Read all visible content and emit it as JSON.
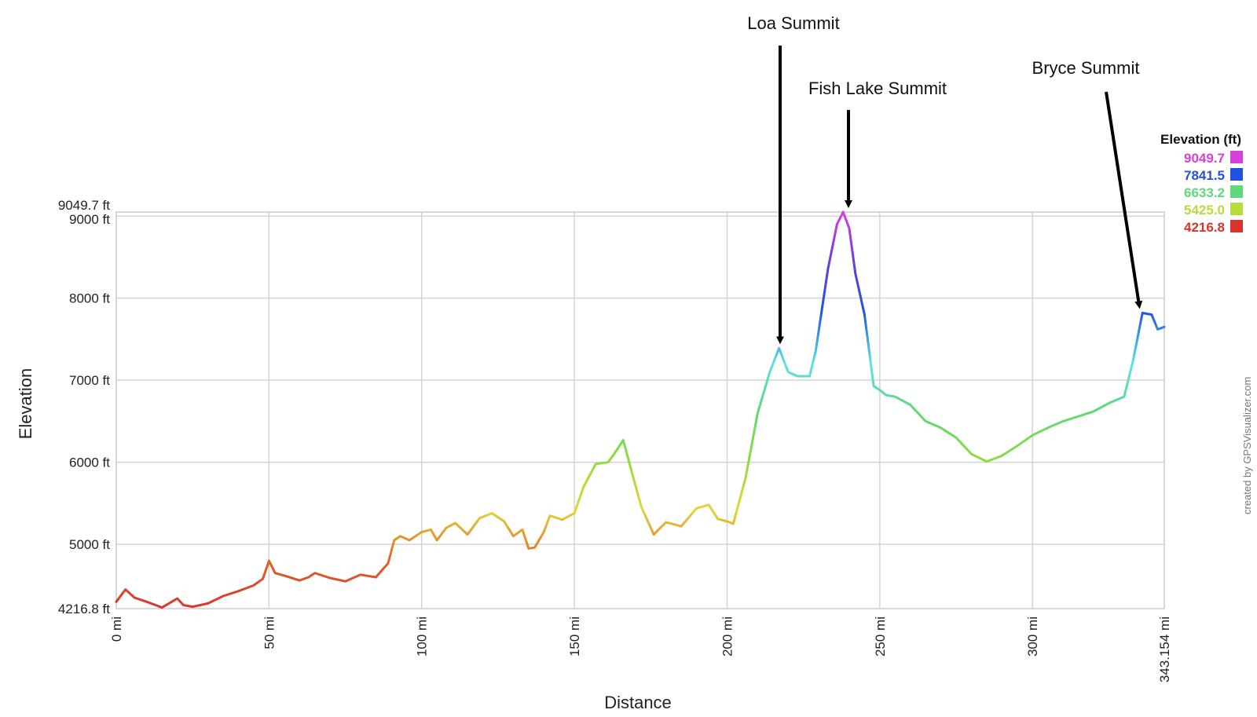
{
  "chart_data": {
    "type": "line",
    "xlabel": "Distance",
    "ylabel": "Elevation",
    "xlim": [
      0,
      343.154
    ],
    "ylim": [
      4216.8,
      9049.7
    ],
    "x_ticks": [
      {
        "value": 0,
        "label": "0 mi"
      },
      {
        "value": 50,
        "label": "50 mi"
      },
      {
        "value": 100,
        "label": "100 mi"
      },
      {
        "value": 150,
        "label": "150 mi"
      },
      {
        "value": 200,
        "label": "200 mi"
      },
      {
        "value": 250,
        "label": "250 mi"
      },
      {
        "value": 300,
        "label": "300 mi"
      },
      {
        "value": 343.154,
        "label": "343.154 mi"
      }
    ],
    "y_ticks": [
      {
        "value": 4216.8,
        "label": "4216.8 ft"
      },
      {
        "value": 5000,
        "label": "5000 ft"
      },
      {
        "value": 6000,
        "label": "6000 ft"
      },
      {
        "value": 7000,
        "label": "7000 ft"
      },
      {
        "value": 8000,
        "label": "8000 ft"
      },
      {
        "value": 9000,
        "label": "9000 ft"
      },
      {
        "value": 9049.7,
        "label": "9049.7 ft"
      }
    ],
    "grid": true,
    "series": [
      {
        "x": [
          0,
          3,
          6,
          10,
          15,
          20,
          22,
          25,
          30,
          35,
          40,
          45,
          48,
          50,
          52,
          55,
          60,
          63,
          65,
          70,
          75,
          80,
          85,
          89,
          91,
          93,
          96,
          100,
          103,
          105,
          108,
          111,
          115,
          119,
          123,
          127,
          130,
          133,
          135,
          137,
          140,
          142,
          146,
          150,
          153,
          157,
          161,
          163,
          166,
          169,
          172,
          176,
          180,
          185,
          190,
          194,
          197,
          200,
          202,
          206,
          210,
          214,
          217,
          220,
          223,
          227,
          229,
          231,
          233,
          236,
          238,
          240,
          242,
          245,
          248,
          250,
          252,
          255,
          260,
          265,
          270,
          275,
          280,
          285,
          288,
          290,
          295,
          300,
          305,
          310,
          315,
          320,
          325,
          330,
          333,
          336,
          339,
          341,
          343.154
        ],
        "y": [
          4300,
          4450,
          4350,
          4300,
          4230,
          4340,
          4260,
          4240,
          4280,
          4370,
          4430,
          4500,
          4580,
          4800,
          4650,
          4620,
          4560,
          4600,
          4650,
          4590,
          4550,
          4630,
          4600,
          4770,
          5050,
          5100,
          5050,
          5150,
          5180,
          5050,
          5200,
          5260,
          5120,
          5320,
          5380,
          5280,
          5100,
          5180,
          4950,
          4960,
          5150,
          5350,
          5300,
          5380,
          5700,
          5980,
          6000,
          6100,
          6270,
          5850,
          5450,
          5120,
          5270,
          5220,
          5440,
          5480,
          5310,
          5280,
          5250,
          5800,
          6600,
          7100,
          7390,
          7100,
          7050,
          7050,
          7350,
          7850,
          8350,
          8900,
          9049.7,
          8850,
          8300,
          7800,
          6930,
          6880,
          6820,
          6800,
          6700,
          6500,
          6420,
          6300,
          6100,
          6010,
          6050,
          6080,
          6200,
          6330,
          6420,
          6500,
          6560,
          6620,
          6720,
          6800,
          7250,
          7820,
          7800,
          7620,
          7650
        ]
      }
    ],
    "color_scale": {
      "title": "Elevation (ft)",
      "entries": [
        {
          "label": "9049.7",
          "color": "#d63fd9"
        },
        {
          "label": "7841.5",
          "color": "#1f52e0"
        },
        {
          "label": "6633.2",
          "color": "#5ed87a"
        },
        {
          "label": "5425.0",
          "color": "#b6dd3c"
        },
        {
          "label": "4216.8",
          "color": "#d8342c"
        }
      ]
    },
    "annotations": [
      {
        "text": "Loa Summit",
        "x": 217,
        "y": 7390
      },
      {
        "text": "Fish Lake Summit",
        "x": 238,
        "y": 9049.7
      },
      {
        "text": "Bryce Summit",
        "x": 334,
        "y": 7820
      }
    ],
    "credit": "created by GPSVisualizer.com"
  }
}
